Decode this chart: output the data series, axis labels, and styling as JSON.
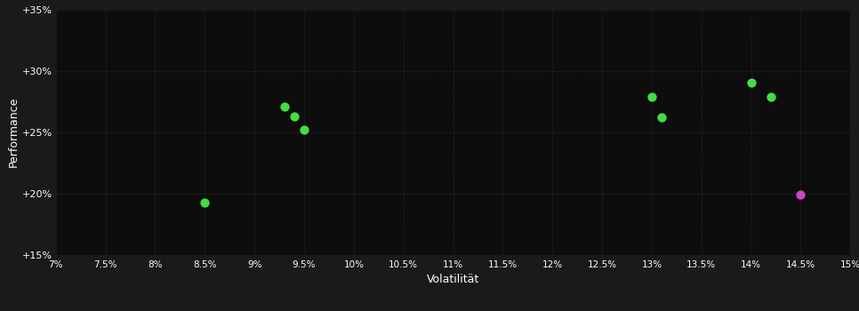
{
  "background_color": "#1a1a1a",
  "plot_bg_color": "#0d0d0d",
  "grid_color": "#2a2a2a",
  "text_color": "#ffffff",
  "xlabel": "Volatilität",
  "ylabel": "Performance",
  "xlim": [
    0.07,
    0.15
  ],
  "ylim": [
    0.15,
    0.35
  ],
  "xticks": [
    0.07,
    0.075,
    0.08,
    0.085,
    0.09,
    0.095,
    0.1,
    0.105,
    0.11,
    0.115,
    0.12,
    0.125,
    0.13,
    0.135,
    0.14,
    0.145,
    0.15
  ],
  "yticks": [
    0.15,
    0.2,
    0.25,
    0.3,
    0.35
  ],
  "xtick_labels": [
    "7%",
    "7.5%",
    "8%",
    "8.5%",
    "9%",
    "9.5%",
    "10%",
    "10.5%",
    "11%",
    "11.5%",
    "12%",
    "12.5%",
    "13%",
    "13.5%",
    "14%",
    "14.5%",
    "15%"
  ],
  "ytick_labels": [
    "+15%",
    "+20%",
    "+25%",
    "+30%",
    "+35%"
  ],
  "green_points": [
    [
      0.085,
      0.193
    ],
    [
      0.093,
      0.271
    ],
    [
      0.094,
      0.263
    ],
    [
      0.095,
      0.252
    ],
    [
      0.13,
      0.279
    ],
    [
      0.131,
      0.262
    ],
    [
      0.14,
      0.29
    ],
    [
      0.142,
      0.279
    ]
  ],
  "magenta_points": [
    [
      0.145,
      0.199
    ]
  ],
  "green_color": "#44dd44",
  "magenta_color": "#cc44cc",
  "marker_size": 55
}
